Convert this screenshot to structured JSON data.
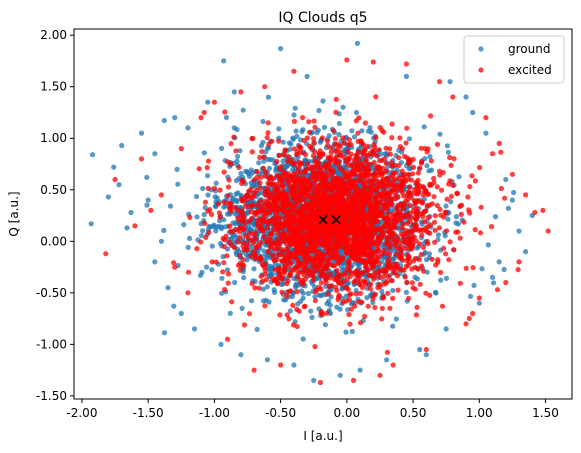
{
  "chart_data": {
    "type": "scatter",
    "title": "IQ Clouds q5",
    "xlabel": "I [a.u.]",
    "ylabel": "Q [a.u.]",
    "xlim": [
      -2.06,
      1.7
    ],
    "ylim": [
      -1.53,
      2.06
    ],
    "xticks": [
      -2.0,
      -1.5,
      -1.0,
      -0.5,
      0.0,
      0.5,
      1.0,
      1.5
    ],
    "xtick_labels": [
      "-2.00",
      "-1.50",
      "-1.00",
      "-0.50",
      "0.00",
      "0.50",
      "1.00",
      "1.50"
    ],
    "yticks": [
      -1.5,
      -1.0,
      -0.5,
      0.0,
      0.5,
      1.0,
      1.5,
      2.0
    ],
    "ytick_labels": [
      "-1.50",
      "-1.00",
      "-0.50",
      "0.00",
      "0.50",
      "1.00",
      "1.50",
      "2.00"
    ],
    "grid": false,
    "legend_position": "top-right",
    "series": [
      {
        "name": "ground",
        "color": "#1f77b4",
        "alpha": 0.75,
        "center": [
          -0.18,
          0.22
        ],
        "spread": [
          0.38,
          0.36
        ],
        "core_extent": [
          [
            -1.0,
            0.85
          ],
          [
            -0.85,
            1.2
          ]
        ],
        "outliers": [
          [
            -1.92,
            0.84
          ],
          [
            -1.93,
            0.17
          ],
          [
            -1.8,
            0.43
          ],
          [
            -1.76,
            0.72
          ],
          [
            -1.7,
            0.93
          ],
          [
            -1.72,
            0.55
          ],
          [
            -1.63,
            0.28
          ],
          [
            -1.66,
            0.13
          ],
          [
            -1.55,
            1.05
          ],
          [
            -1.51,
            0.62
          ],
          [
            -1.45,
            -0.2
          ],
          [
            -1.4,
            0.0
          ],
          [
            -1.35,
            -0.45
          ],
          [
            -1.3,
            1.2
          ],
          [
            -1.25,
            -0.7
          ],
          [
            -1.15,
            -0.85
          ],
          [
            -0.95,
            -1.0
          ],
          [
            -0.93,
            1.75
          ],
          [
            -0.85,
            1.45
          ],
          [
            -0.8,
            -1.1
          ],
          [
            -0.6,
            -1.15
          ],
          [
            -0.5,
            1.87
          ],
          [
            -0.4,
            -1.2
          ],
          [
            -0.3,
            1.6
          ],
          [
            -0.25,
            -1.35
          ],
          [
            0.08,
            1.92
          ],
          [
            0.1,
            -1.25
          ],
          [
            0.3,
            -1.15
          ],
          [
            0.45,
            1.6
          ],
          [
            0.55,
            -1.05
          ],
          [
            0.78,
            1.55
          ],
          [
            0.75,
            -0.85
          ],
          [
            0.9,
            1.4
          ],
          [
            1.0,
            -0.6
          ],
          [
            1.05,
            1.05
          ],
          [
            1.15,
            -0.2
          ],
          [
            1.2,
            0.6
          ],
          [
            1.22,
            0.32
          ],
          [
            1.3,
            0.1
          ],
          [
            1.35,
            -0.1
          ],
          [
            1.1,
            -0.35
          ],
          [
            1.25,
            0.4
          ],
          [
            -1.05,
            1.35
          ],
          [
            -1.2,
            1.1
          ],
          [
            0.95,
            1.25
          ],
          [
            -1.5,
            0.4
          ],
          [
            -1.45,
            0.85
          ],
          [
            0.6,
            -1.1
          ],
          [
            -0.05,
            -1.3
          ],
          [
            1.4,
            0.25
          ]
        ],
        "mean_marker": [
          -0.18,
          0.21
        ]
      },
      {
        "name": "excited",
        "color": "#ff0000",
        "alpha": 0.75,
        "center": [
          -0.08,
          0.22
        ],
        "spread": [
          0.38,
          0.36
        ],
        "core_extent": [
          [
            -0.9,
            0.95
          ],
          [
            -0.85,
            1.25
          ]
        ],
        "outliers": [
          [
            -1.82,
            -0.12
          ],
          [
            -1.75,
            0.6
          ],
          [
            -1.6,
            0.15
          ],
          [
            -1.55,
            0.8
          ],
          [
            -1.4,
            0.45
          ],
          [
            -1.2,
            -0.5
          ],
          [
            -1.1,
            1.2
          ],
          [
            -0.9,
            -0.95
          ],
          [
            -0.7,
            -1.25
          ],
          [
            -0.62,
            1.5
          ],
          [
            -0.4,
            1.65
          ],
          [
            -0.2,
            -1.37
          ],
          [
            0.0,
            1.76
          ],
          [
            0.05,
            -1.35
          ],
          [
            0.2,
            1.74
          ],
          [
            0.25,
            -1.3
          ],
          [
            0.45,
            1.72
          ],
          [
            0.6,
            -1.05
          ],
          [
            0.8,
            1.4
          ],
          [
            0.95,
            -0.7
          ],
          [
            1.05,
            1.2
          ],
          [
            1.15,
            0.95
          ],
          [
            1.25,
            0.65
          ],
          [
            1.35,
            0.45
          ],
          [
            1.48,
            0.3
          ],
          [
            1.52,
            0.1
          ],
          [
            1.3,
            -0.2
          ],
          [
            1.2,
            -0.4
          ],
          [
            1.1,
            0.85
          ],
          [
            0.9,
            -0.8
          ],
          [
            -1.3,
            -0.25
          ],
          [
            -1.0,
            1.35
          ],
          [
            0.35,
            -1.2
          ],
          [
            -0.5,
            -1.2
          ],
          [
            1.42,
            0.28
          ],
          [
            -1.48,
            0.3
          ],
          [
            -0.8,
            1.45
          ],
          [
            0.7,
            1.55
          ],
          [
            -1.25,
            0.9
          ],
          [
            1.0,
            -0.55
          ]
        ],
        "mean_marker": [
          -0.08,
          0.21
        ]
      }
    ]
  }
}
